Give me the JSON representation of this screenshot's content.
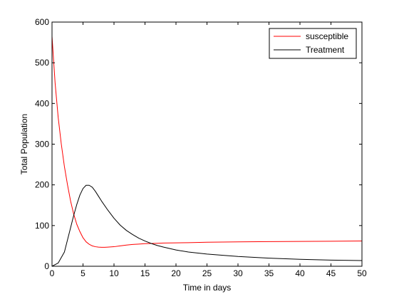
{
  "chart_data": {
    "type": "line",
    "title": "",
    "xlabel": "Time in days",
    "ylabel": "Total Population",
    "xlim": [
      0,
      50
    ],
    "ylim": [
      0,
      600
    ],
    "xticks": [
      0,
      5,
      10,
      15,
      20,
      25,
      30,
      35,
      40,
      45,
      50
    ],
    "yticks": [
      0,
      100,
      200,
      300,
      400,
      500,
      600
    ],
    "grid": false,
    "legend": {
      "position": "top-right"
    },
    "series": [
      {
        "name": "susceptible",
        "color": "#ff0000",
        "x": [
          0,
          0.5,
          1,
          1.5,
          2,
          2.5,
          3,
          3.5,
          4,
          4.5,
          5,
          5.5,
          6,
          6.5,
          7,
          7.5,
          8,
          8.5,
          9,
          10,
          11,
          12,
          13,
          14,
          15,
          16,
          17,
          18,
          20,
          22,
          25,
          30,
          35,
          40,
          45,
          50
        ],
        "y": [
          565,
          450,
          365,
          300,
          245,
          200,
          160,
          128,
          103,
          85,
          70,
          60,
          54,
          50,
          48,
          47,
          46.5,
          46.5,
          47,
          48,
          50,
          52,
          53.5,
          54.5,
          55.5,
          56,
          56.5,
          57,
          57.5,
          58,
          59,
          60,
          60.5,
          61,
          61.5,
          62
        ]
      },
      {
        "name": "Treatment",
        "color": "#000000",
        "x": [
          0,
          1,
          2,
          3,
          3.5,
          4,
          4.5,
          5,
          5.5,
          6,
          6.5,
          7,
          7.5,
          8,
          9,
          10,
          11,
          12,
          13,
          14,
          15,
          16,
          17,
          18,
          20,
          22,
          25,
          30,
          35,
          40,
          45,
          50
        ],
        "y": [
          0,
          8,
          35,
          95,
          125,
          152,
          175,
          191,
          199,
          199,
          194,
          184,
          172,
          160,
          138,
          118,
          101,
          88,
          78,
          69,
          62,
          56,
          51,
          47,
          40,
          35,
          30,
          24,
          20,
          17,
          15,
          14
        ]
      }
    ]
  }
}
